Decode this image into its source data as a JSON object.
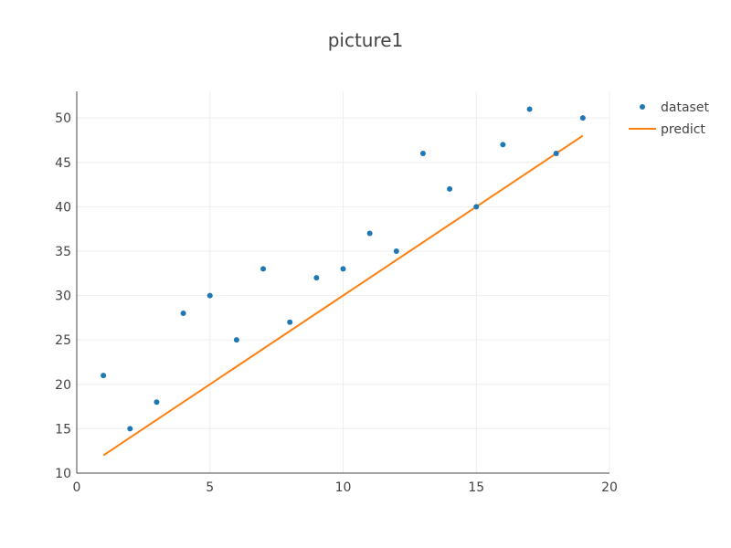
{
  "chart_data": {
    "type": "scatter",
    "title": "picture1",
    "xlabel": "",
    "ylabel": "",
    "xlim": [
      0,
      20
    ],
    "ylim": [
      10,
      53
    ],
    "xticks": [
      0,
      5,
      10,
      15,
      20
    ],
    "yticks": [
      10,
      15,
      20,
      25,
      30,
      35,
      40,
      45,
      50
    ],
    "grid": true,
    "legend_position": "top-right",
    "series": [
      {
        "name": "dataset",
        "kind": "markers",
        "color": "#1f77b4",
        "x": [
          1,
          2,
          3,
          4,
          5,
          6,
          7,
          8,
          9,
          10,
          11,
          12,
          13,
          14,
          15,
          16,
          17,
          18,
          19
        ],
        "y": [
          21,
          15,
          18,
          28,
          30,
          25,
          33,
          27,
          32,
          33,
          37,
          35,
          46,
          42,
          40,
          47,
          51,
          46,
          50
        ]
      },
      {
        "name": "predict",
        "kind": "line",
        "color": "#ff7f0e",
        "x": [
          1,
          19
        ],
        "y": [
          12,
          48
        ]
      }
    ]
  }
}
